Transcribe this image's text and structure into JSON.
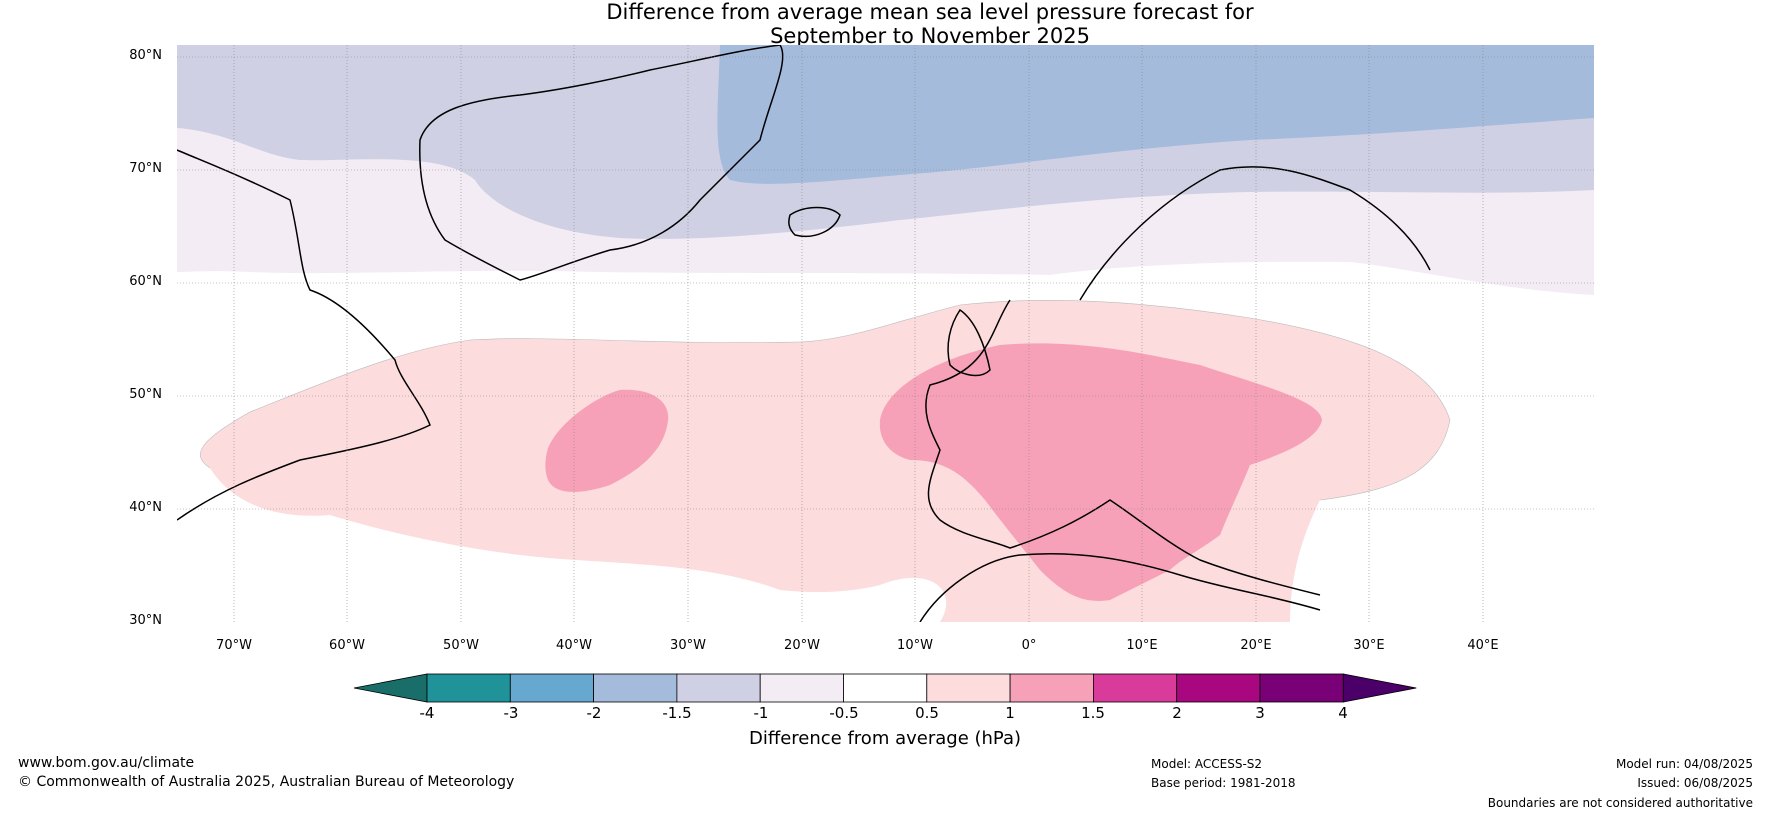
{
  "title_line1": "Difference from average mean sea level pressure forecast for",
  "title_line2": "September to November 2025",
  "lat_labels": [
    "80°N",
    "70°N",
    "60°N",
    "50°N",
    "40°N",
    "30°N"
  ],
  "lon_labels": [
    "70°W",
    "60°W",
    "50°W",
    "40°W",
    "30°W",
    "20°W",
    "10°W",
    "0°",
    "10°E",
    "20°E",
    "30°E",
    "40°E"
  ],
  "colorbar": {
    "ticks": [
      "-4",
      "-3",
      "-2",
      "-1.5",
      "-1",
      "-0.5",
      "0.5",
      "1",
      "1.5",
      "2",
      "3",
      "4"
    ],
    "colors": [
      "#1a6e6a",
      "#1f9399",
      "#66a8d0",
      "#a4bbdb",
      "#d0d0e4",
      "#f4ecf4",
      "#ffffff",
      "#fcdcdc",
      "#f7a1b9",
      "#d93b9a",
      "#a8077f",
      "#7a0077",
      "#4a0068"
    ],
    "title": "Difference from average (hPa)"
  },
  "footer": {
    "website": "www.bom.gov.au/climate",
    "copyright": "© Commonwealth of Australia 2025, Australian Bureau of Meteorology",
    "model": "Model: ACCESS-S2",
    "base_period": "Base period: 1981-2018",
    "model_run": "Model run: 04/08/2025",
    "issued": "Issued: 06/08/2025",
    "disclaimer": "Boundaries are not considered authoritative"
  }
}
